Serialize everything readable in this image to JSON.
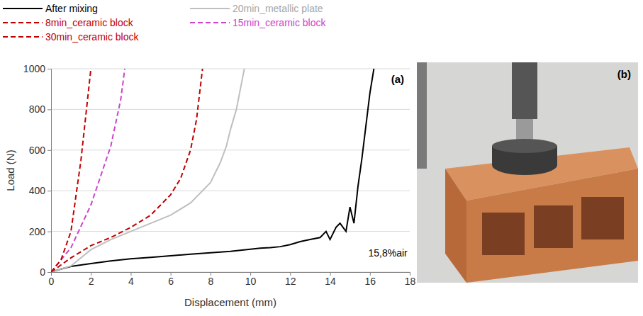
{
  "chart_data": {
    "type": "line",
    "x_label": "Displacement (mm)",
    "y_label": "Load (N)",
    "panel_label": "(a)",
    "annotation": "15,8%air",
    "xlim": [
      0,
      18
    ],
    "xticks": [
      0,
      2,
      4,
      6,
      8,
      10,
      12,
      14,
      16,
      18
    ],
    "ylim": [
      0,
      1000
    ],
    "yticks": [
      0,
      200,
      400,
      600,
      800,
      1000
    ],
    "grid": true,
    "legend": "top",
    "series": [
      {
        "name": "After mixing",
        "color": "#000000",
        "line_style": "solid",
        "x": [
          0,
          0.5,
          1,
          2,
          3,
          4,
          5,
          6,
          7,
          8,
          9,
          10,
          10.5,
          11,
          11.5,
          12,
          12.5,
          13,
          13.5,
          13.8,
          14,
          14.3,
          14.5,
          14.8,
          15,
          15.2,
          15.4,
          15.6,
          15.8,
          16,
          16.2
        ],
        "values": [
          0,
          15,
          28,
          42,
          55,
          65,
          72,
          80,
          88,
          95,
          102,
          112,
          118,
          120,
          125,
          135,
          150,
          160,
          170,
          200,
          160,
          220,
          240,
          200,
          320,
          240,
          420,
          560,
          720,
          880,
          1000
        ]
      },
      {
        "name": "20min_metallic plate",
        "color": "#bfbfbf",
        "line_style": "solid",
        "x": [
          0,
          1,
          2,
          3,
          4,
          5,
          6,
          7,
          8,
          8.5,
          8.8,
          9,
          9.3,
          9.6,
          9.7
        ],
        "values": [
          0,
          30,
          110,
          160,
          200,
          240,
          280,
          340,
          440,
          540,
          620,
          700,
          800,
          950,
          1000
        ]
      },
      {
        "name": "8min_ceramic block",
        "color": "#c00000",
        "line_style": "dashed",
        "x": [
          0,
          1,
          2,
          3,
          4,
          5,
          6,
          6.5,
          7,
          7.3,
          7.6
        ],
        "values": [
          0,
          70,
          130,
          170,
          220,
          280,
          380,
          460,
          600,
          750,
          1000
        ]
      },
      {
        "name": "15min_ceramic block",
        "color": "#cc44cc",
        "line_style": "dashed",
        "x": [
          0,
          1,
          2,
          3,
          3.5,
          3.7
        ],
        "values": [
          0,
          120,
          330,
          620,
          850,
          1000
        ]
      },
      {
        "name": "30min_ceramic block",
        "color": "#c00000",
        "line_style": "dashed",
        "x": [
          0,
          0.5,
          1,
          1.5,
          1.8,
          2
        ],
        "values": [
          0,
          60,
          200,
          550,
          820,
          1000
        ]
      }
    ]
  },
  "photo": {
    "label": "(b)"
  }
}
